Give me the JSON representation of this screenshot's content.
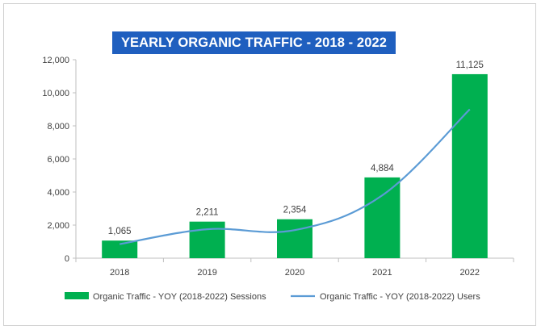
{
  "chart_data": {
    "type": "bar",
    "title": "YEARLY ORGANIC TRAFFIC - 2018 - 2022",
    "categories": [
      "2018",
      "2019",
      "2020",
      "2021",
      "2022"
    ],
    "ylim": [
      0,
      12000
    ],
    "yticks": [
      0,
      2000,
      4000,
      6000,
      8000,
      10000,
      12000
    ],
    "ytick_labels": [
      "0",
      "2,000",
      "4,000",
      "6,000",
      "8,000",
      "10,000",
      "12,000"
    ],
    "grid": false,
    "legend_position": "bottom",
    "series": [
      {
        "name": "Organic Traffic - YOY (2018-2022) Sessions",
        "type": "bar",
        "color": "#00b050",
        "values": [
          1065,
          2211,
          2354,
          4884,
          11125
        ],
        "data_labels": [
          "1,065",
          "2,211",
          "2,354",
          "4,884",
          "11,125"
        ]
      },
      {
        "name": "Organic Traffic - YOY (2018-2022) Users",
        "type": "line",
        "color": "#5b9bd5",
        "values": [
          850,
          1750,
          1700,
          3800,
          9000
        ]
      }
    ]
  }
}
